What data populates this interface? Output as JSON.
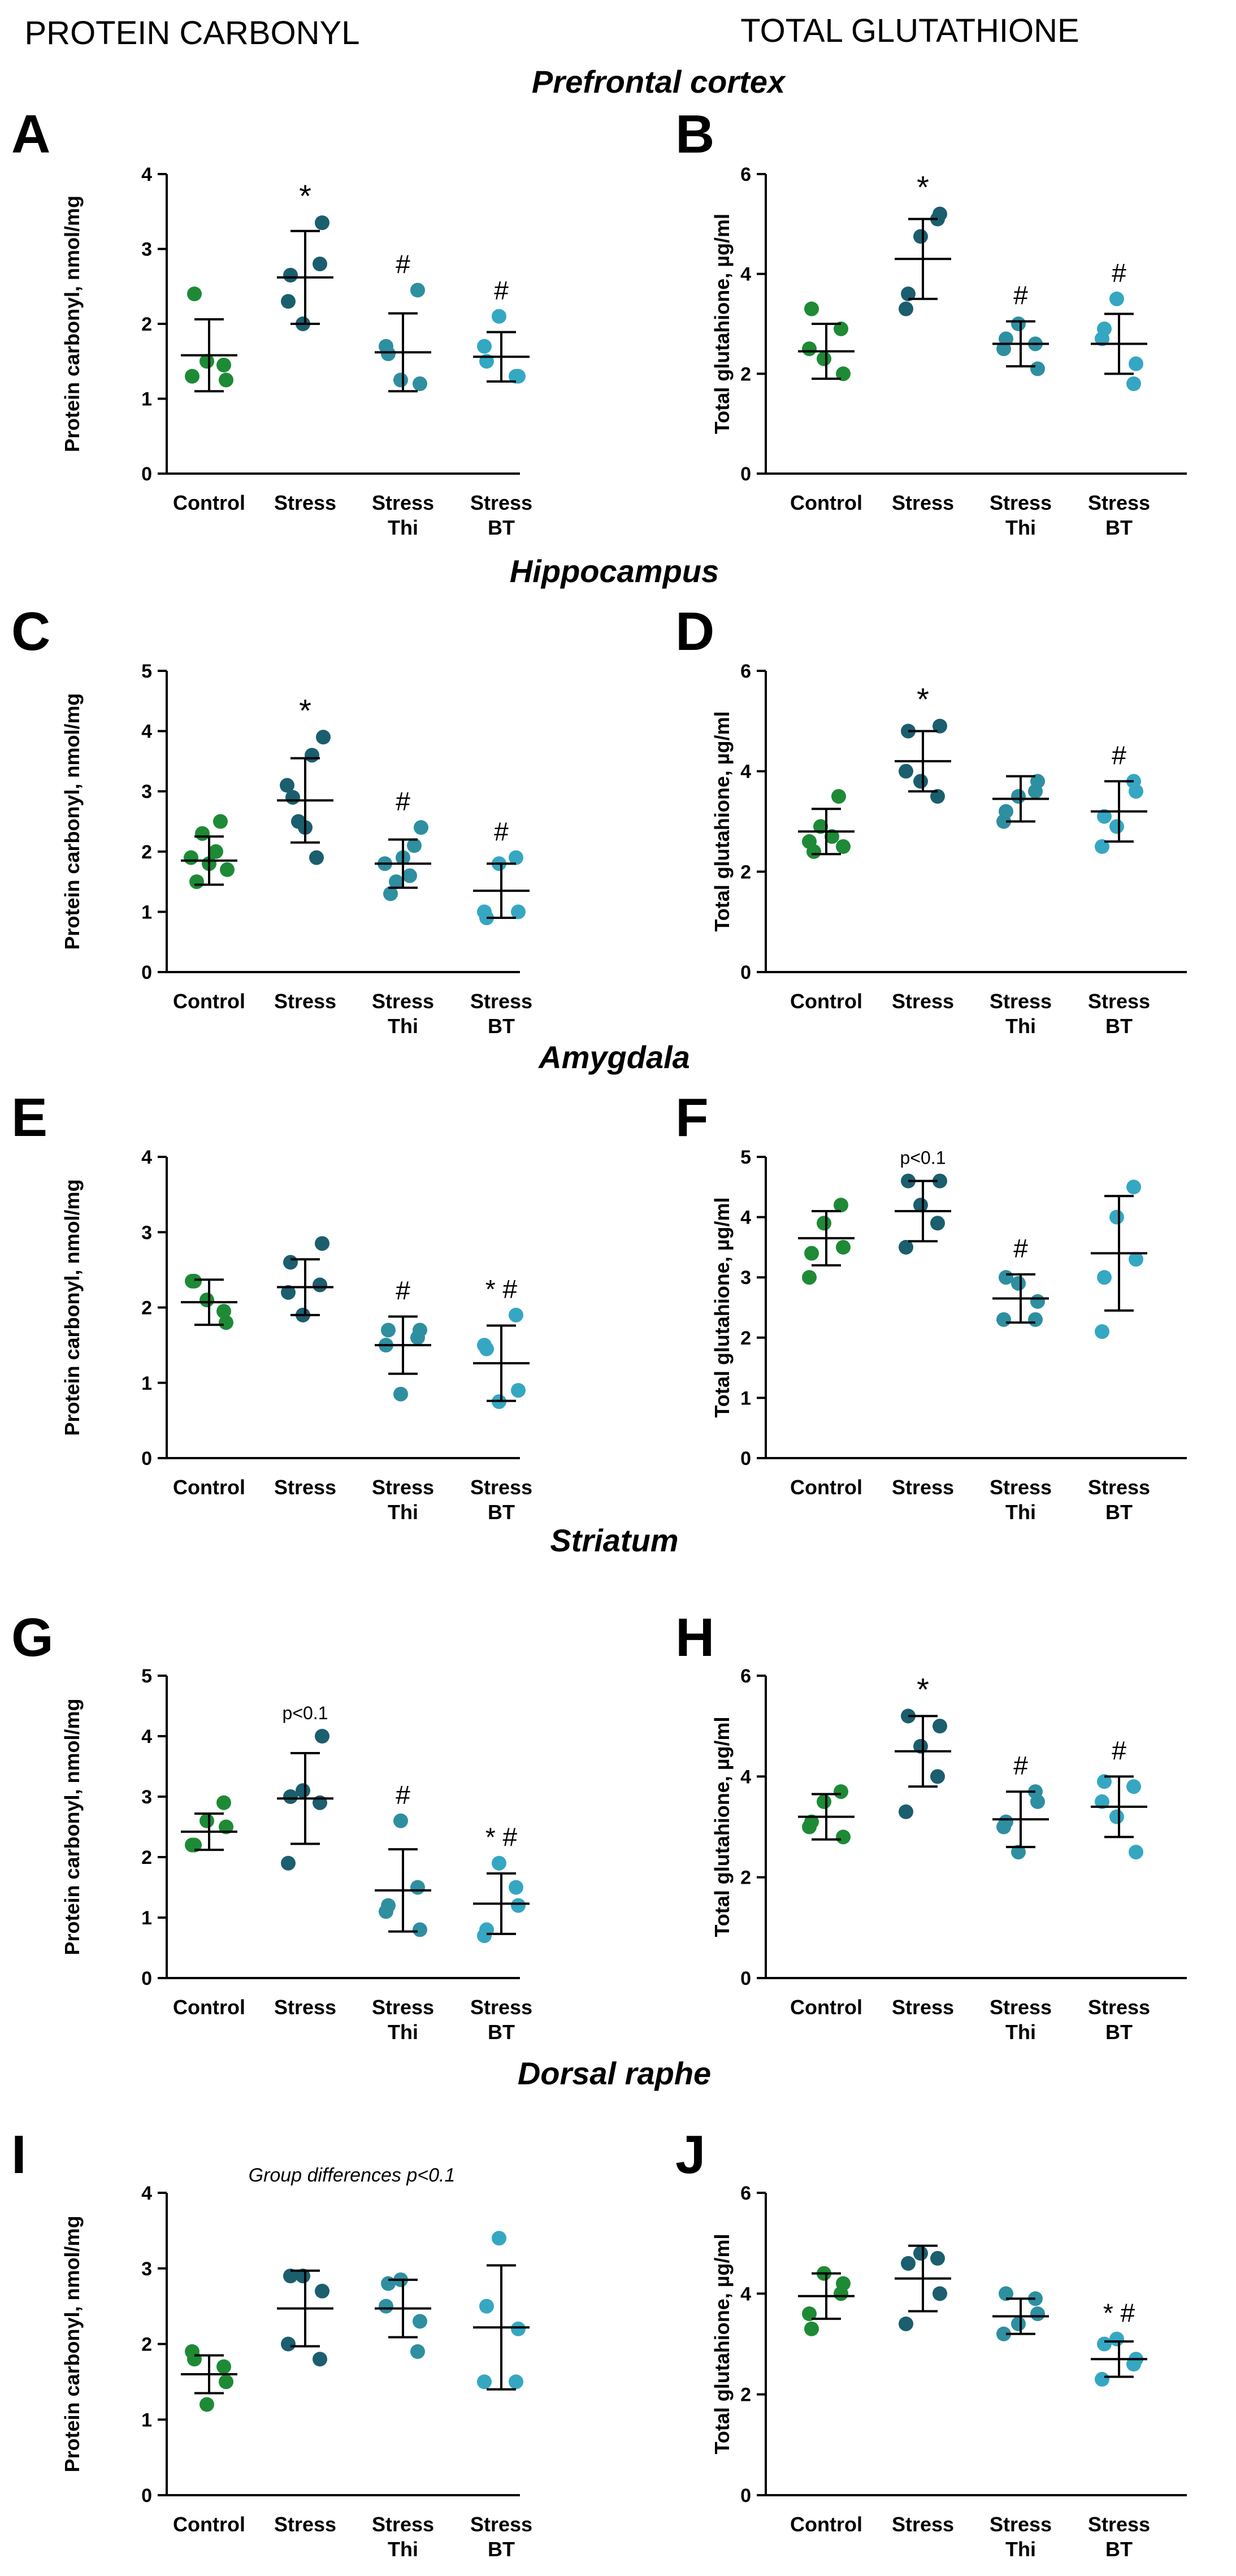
{
  "column_headers": {
    "left": "PROTEIN CARBONYL",
    "right": "TOTAL GLUTATHIONE"
  },
  "regions": [
    "Prefrontal cortex",
    "Hippocampus",
    "Amygdala",
    "Striatum",
    "Dorsal raphe"
  ],
  "colors": {
    "control": "#1e8a35",
    "stress": "#1b5e6e",
    "thi": "#2e8fa0",
    "bt": "#35a7c2",
    "axis": "#000000"
  },
  "chart_data": [
    {
      "type": "scatter",
      "panel_letter": "A",
      "region": "Prefrontal cortex",
      "ylabel": "Protein carbonyl, nmol/mg",
      "ylim": [
        0,
        4
      ],
      "yticks": [
        0,
        1,
        2,
        3,
        4
      ],
      "categories": [
        "Control",
        "Stress",
        "Stress\nThi",
        "Stress\nBT"
      ],
      "groups": [
        {
          "name": "Control",
          "points": [
            1.3,
            1.25,
            1.5,
            1.45,
            2.4
          ],
          "mean": 1.58,
          "sd": 0.48,
          "annotation": ""
        },
        {
          "name": "Stress",
          "points": [
            2.3,
            3.35,
            2.0,
            2.8,
            2.65
          ],
          "mean": 2.62,
          "sd": 0.62,
          "annotation": "*"
        },
        {
          "name": "Stress Thi",
          "points": [
            1.7,
            1.2,
            1.25,
            2.45,
            1.6
          ],
          "mean": 1.62,
          "sd": 0.52,
          "annotation": "#"
        },
        {
          "name": "Stress BT",
          "points": [
            1.7,
            1.3,
            2.1,
            1.3,
            1.5
          ],
          "mean": 1.56,
          "sd": 0.33,
          "annotation": "#"
        }
      ]
    },
    {
      "type": "scatter",
      "panel_letter": "B",
      "region": "Prefrontal cortex",
      "ylabel": "Total glutahione, µg/ml",
      "ylim": [
        0,
        6
      ],
      "yticks": [
        0,
        2,
        4,
        6
      ],
      "categories": [
        "Control",
        "Stress",
        "Stress\nThi",
        "Stress\nBT"
      ],
      "groups": [
        {
          "name": "Control",
          "points": [
            2.5,
            2.0,
            2.3,
            2.9,
            3.3
          ],
          "mean": 2.45,
          "sd": 0.55,
          "annotation": ""
        },
        {
          "name": "Stress",
          "points": [
            3.3,
            5.2,
            4.75,
            5.1,
            3.6
          ],
          "mean": 4.3,
          "sd": 0.8,
          "annotation": "*"
        },
        {
          "name": "Stress Thi",
          "points": [
            2.5,
            2.1,
            3.0,
            2.6,
            2.7
          ],
          "mean": 2.6,
          "sd": 0.45,
          "annotation": "#"
        },
        {
          "name": "Stress BT",
          "points": [
            2.7,
            2.2,
            3.5,
            1.8,
            2.9
          ],
          "mean": 2.6,
          "sd": 0.6,
          "annotation": "#"
        }
      ]
    },
    {
      "type": "scatter",
      "panel_letter": "C",
      "region": "Hippocampus",
      "ylabel": "Protein carbonyl, nmol/mg",
      "ylim": [
        0,
        5
      ],
      "yticks": [
        0,
        1,
        2,
        3,
        4,
        5
      ],
      "categories": [
        "Control",
        "Stress",
        "Stress\nThi",
        "Stress\nBT"
      ],
      "groups": [
        {
          "name": "Control",
          "points": [
            1.9,
            1.7,
            2.3,
            2.5,
            1.5,
            2.0,
            1.8
          ],
          "mean": 1.85,
          "sd": 0.4,
          "annotation": ""
        },
        {
          "name": "Stress",
          "points": [
            3.1,
            3.9,
            2.5,
            1.9,
            2.9,
            3.6,
            2.4
          ],
          "mean": 2.85,
          "sd": 0.7,
          "annotation": "*"
        },
        {
          "name": "Stress Thi",
          "points": [
            1.8,
            2.4,
            1.5,
            2.1,
            1.3,
            1.6,
            1.9
          ],
          "mean": 1.8,
          "sd": 0.4,
          "annotation": "#"
        },
        {
          "name": "Stress BT",
          "points": [
            1.0,
            1.0,
            1.8,
            1.9,
            0.9
          ],
          "mean": 1.35,
          "sd": 0.45,
          "annotation": "#"
        }
      ]
    },
    {
      "type": "scatter",
      "panel_letter": "D",
      "region": "Hippocampus",
      "ylabel": "Total glutahione, µg/ml",
      "ylim": [
        0,
        6
      ],
      "yticks": [
        0,
        2,
        4,
        6
      ],
      "categories": [
        "Control",
        "Stress",
        "Stress\nThi",
        "Stress\nBT"
      ],
      "groups": [
        {
          "name": "Control",
          "points": [
            2.6,
            2.5,
            2.9,
            3.5,
            2.4,
            2.7
          ],
          "mean": 2.8,
          "sd": 0.45,
          "annotation": ""
        },
        {
          "name": "Stress",
          "points": [
            4.0,
            4.9,
            3.8,
            3.5,
            4.8
          ],
          "mean": 4.2,
          "sd": 0.6,
          "annotation": "*"
        },
        {
          "name": "Stress Thi",
          "points": [
            3.0,
            3.8,
            3.5,
            3.6,
            3.2
          ],
          "mean": 3.45,
          "sd": 0.45,
          "annotation": ""
        },
        {
          "name": "Stress BT",
          "points": [
            2.5,
            3.6,
            2.9,
            3.8,
            3.1
          ],
          "mean": 3.2,
          "sd": 0.6,
          "annotation": "#"
        }
      ]
    },
    {
      "type": "scatter",
      "panel_letter": "E",
      "region": "Amygdala",
      "ylabel": "Protein carbonyl, nmol/mg",
      "ylim": [
        0,
        4
      ],
      "yticks": [
        0,
        1,
        2,
        3,
        4
      ],
      "categories": [
        "Control",
        "Stress",
        "Stress\nThi",
        "Stress\nBT"
      ],
      "groups": [
        {
          "name": "Control",
          "points": [
            2.35,
            1.8,
            2.1,
            1.95,
            2.35
          ],
          "mean": 2.07,
          "sd": 0.3,
          "annotation": ""
        },
        {
          "name": "Stress",
          "points": [
            2.2,
            2.85,
            1.9,
            2.3,
            2.6
          ],
          "mean": 2.27,
          "sd": 0.37,
          "annotation": ""
        },
        {
          "name": "Stress Thi",
          "points": [
            1.5,
            1.7,
            0.85,
            1.6,
            1.7
          ],
          "mean": 1.5,
          "sd": 0.38,
          "annotation": "#"
        },
        {
          "name": "Stress BT",
          "points": [
            1.5,
            0.9,
            0.75,
            1.9,
            1.45
          ],
          "mean": 1.26,
          "sd": 0.5,
          "annotation": "* #"
        }
      ]
    },
    {
      "type": "scatter",
      "panel_letter": "F",
      "region": "Amygdala",
      "ylabel": "Total glutahione, µg/ml",
      "ylim": [
        0,
        5
      ],
      "yticks": [
        0,
        1,
        2,
        3,
        4,
        5
      ],
      "categories": [
        "Control",
        "Stress",
        "Stress\nThi",
        "Stress\nBT"
      ],
      "groups": [
        {
          "name": "Control",
          "points": [
            3.0,
            3.5,
            3.9,
            4.2,
            3.4
          ],
          "mean": 3.65,
          "sd": 0.45,
          "annotation": ""
        },
        {
          "name": "Stress",
          "points": [
            3.5,
            4.6,
            4.2,
            3.9,
            4.6
          ],
          "mean": 4.1,
          "sd": 0.5,
          "annotation": "p<0.1"
        },
        {
          "name": "Stress Thi",
          "points": [
            2.3,
            2.6,
            2.9,
            2.3,
            3.0
          ],
          "mean": 2.65,
          "sd": 0.4,
          "annotation": "#"
        },
        {
          "name": "Stress BT",
          "points": [
            2.1,
            3.3,
            4.0,
            4.5,
            3.0
          ],
          "mean": 3.4,
          "sd": 0.95,
          "annotation": ""
        }
      ]
    },
    {
      "type": "scatter",
      "panel_letter": "G",
      "region": "Striatum",
      "ylabel": "Protein carbonyl, nmol/mg",
      "ylim": [
        0,
        5
      ],
      "yticks": [
        0,
        1,
        2,
        3,
        4,
        5
      ],
      "categories": [
        "Control",
        "Stress",
        "Stress\nThi",
        "Stress\nBT"
      ],
      "groups": [
        {
          "name": "Control",
          "points": [
            2.2,
            2.5,
            2.6,
            2.9,
            2.2
          ],
          "mean": 2.42,
          "sd": 0.3,
          "annotation": ""
        },
        {
          "name": "Stress",
          "points": [
            1.9,
            4.0,
            3.1,
            2.9,
            3.0
          ],
          "mean": 2.97,
          "sd": 0.75,
          "annotation": "p<0.1"
        },
        {
          "name": "Stress Thi",
          "points": [
            1.1,
            0.8,
            2.6,
            1.5,
            1.2
          ],
          "mean": 1.45,
          "sd": 0.68,
          "annotation": "#"
        },
        {
          "name": "Stress BT",
          "points": [
            0.7,
            1.2,
            1.9,
            1.5,
            0.8
          ],
          "mean": 1.23,
          "sd": 0.5,
          "annotation": "* #"
        }
      ]
    },
    {
      "type": "scatter",
      "panel_letter": "H",
      "region": "Striatum",
      "ylabel": "Total glutahione, µg/ml",
      "ylim": [
        0,
        6
      ],
      "yticks": [
        0,
        2,
        4,
        6
      ],
      "categories": [
        "Control",
        "Stress",
        "Stress\nThi",
        "Stress\nBT"
      ],
      "groups": [
        {
          "name": "Control",
          "points": [
            3.0,
            2.8,
            3.5,
            3.7,
            3.1
          ],
          "mean": 3.2,
          "sd": 0.45,
          "annotation": ""
        },
        {
          "name": "Stress",
          "points": [
            3.3,
            5.0,
            4.6,
            4.0,
            5.2
          ],
          "mean": 4.5,
          "sd": 0.7,
          "annotation": "*"
        },
        {
          "name": "Stress Thi",
          "points": [
            3.0,
            3.5,
            2.5,
            3.7,
            3.1
          ],
          "mean": 3.15,
          "sd": 0.55,
          "annotation": "#"
        },
        {
          "name": "Stress BT",
          "points": [
            3.5,
            2.5,
            3.2,
            3.8,
            3.9
          ],
          "mean": 3.4,
          "sd": 0.6,
          "annotation": "#"
        }
      ]
    },
    {
      "type": "scatter",
      "panel_letter": "I",
      "region": "Dorsal raphe",
      "ylabel": "Protein carbonyl, nmol/mg",
      "ylim": [
        0,
        4
      ],
      "yticks": [
        0,
        1,
        2,
        3,
        4
      ],
      "categories": [
        "Control",
        "Stress",
        "Stress\nThi",
        "Stress\nBT"
      ],
      "groups": [
        {
          "name": "Control",
          "points": [
            1.9,
            1.5,
            1.2,
            1.7,
            1.8
          ],
          "mean": 1.6,
          "sd": 0.25,
          "annotation": ""
        },
        {
          "name": "Stress",
          "points": [
            2.0,
            2.7,
            2.9,
            1.8,
            2.9
          ],
          "mean": 2.47,
          "sd": 0.5,
          "annotation": ""
        },
        {
          "name": "Stress Thi",
          "points": [
            2.5,
            2.3,
            2.85,
            1.9,
            2.8
          ],
          "mean": 2.47,
          "sd": 0.38,
          "annotation": ""
        },
        {
          "name": "Stress BT",
          "points": [
            1.5,
            2.2,
            3.4,
            1.5,
            2.5
          ],
          "mean": 2.22,
          "sd": 0.82,
          "annotation": ""
        }
      ],
      "note": "Group differences p<0.1"
    },
    {
      "type": "scatter",
      "panel_letter": "J",
      "region": "Dorsal raphe",
      "ylabel": "Total glutahione, µg/ml",
      "ylim": [
        0,
        6
      ],
      "yticks": [
        0,
        2,
        4,
        6
      ],
      "categories": [
        "Control",
        "Stress",
        "Stress\nThi",
        "Stress\nBT"
      ],
      "groups": [
        {
          "name": "Control",
          "points": [
            3.6,
            4.2,
            4.4,
            4.0,
            3.3
          ],
          "mean": 3.95,
          "sd": 0.45,
          "annotation": ""
        },
        {
          "name": "Stress",
          "points": [
            3.4,
            4.0,
            4.8,
            4.7,
            4.6
          ],
          "mean": 4.3,
          "sd": 0.65,
          "annotation": ""
        },
        {
          "name": "Stress Thi",
          "points": [
            3.2,
            3.6,
            3.4,
            3.9,
            4.0
          ],
          "mean": 3.55,
          "sd": 0.35,
          "annotation": ""
        },
        {
          "name": "Stress BT",
          "points": [
            2.3,
            2.7,
            3.1,
            2.6,
            3.0
          ],
          "mean": 2.7,
          "sd": 0.35,
          "annotation": "* #"
        }
      ]
    }
  ]
}
